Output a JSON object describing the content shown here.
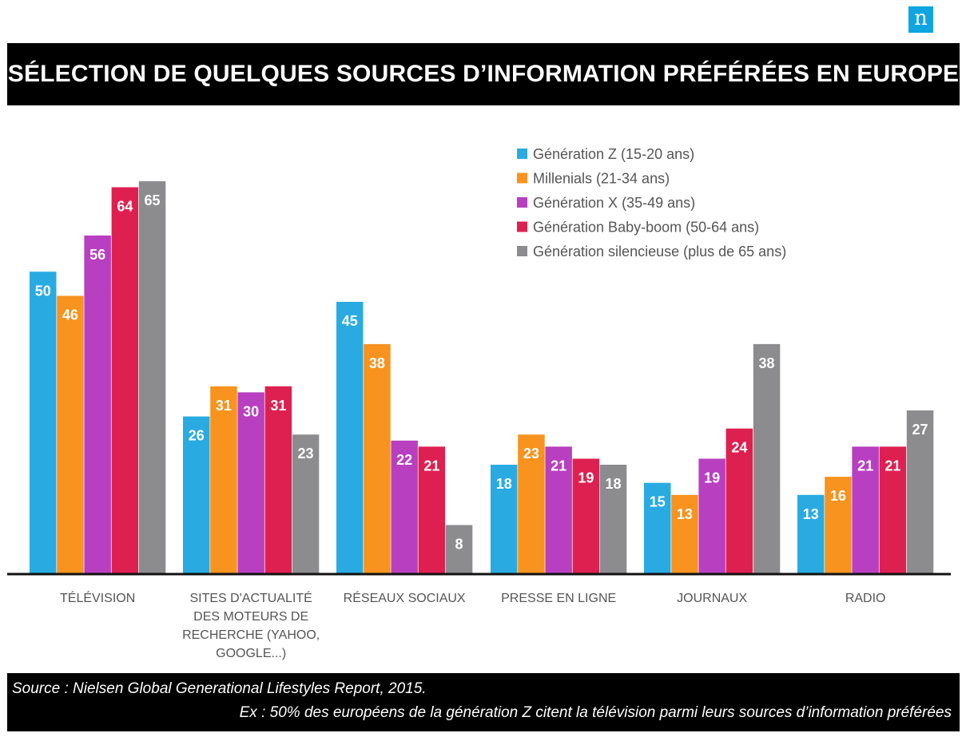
{
  "logo": {
    "text": "n",
    "color": "#0ea5e0"
  },
  "header": {
    "title": "SÉLECTION DE QUELQUES SOURCES D’INFORMATION PRÉFÉRÉES EN EUROPE"
  },
  "footer": {
    "source": "Source : Nielsen Global Generational Lifestyles Report, 2015.",
    "note": "Ex : 50% des européens de la génération Z citent la télévision parmi leurs sources d’information préférées"
  },
  "chart_data": {
    "type": "bar",
    "title": "SÉLECTION DE QUELQUES SOURCES D’INFORMATION PRÉFÉRÉES EN EUROPE",
    "xlabel": "",
    "ylabel": "",
    "ylim": [
      0,
      65
    ],
    "grid": false,
    "legend_position": "top-right",
    "categories": [
      [
        "TÉLÉVISION"
      ],
      [
        "SITES D'ACTUALITÉ",
        "DES MOTEURS DE",
        "RECHERCHE (YAHOO,",
        "GOOGLE...)"
      ],
      [
        "RÉSEAUX SOCIAUX"
      ],
      [
        "PRESSE EN LIGNE"
      ],
      [
        "JOURNAUX"
      ],
      [
        "RADIO"
      ]
    ],
    "series": [
      {
        "name": "Génération Z (15-20 ans)",
        "color": "#29abe2",
        "values": [
          50,
          26,
          45,
          18,
          15,
          13
        ]
      },
      {
        "name": "Millenials (21-34 ans)",
        "color": "#f7931e",
        "values": [
          46,
          31,
          38,
          23,
          13,
          16
        ]
      },
      {
        "name": "Génération X (35-49 ans)",
        "color": "#b83fc0",
        "values": [
          56,
          30,
          22,
          21,
          19,
          21
        ]
      },
      {
        "name": "Génération Baby-boom (50-64 ans)",
        "color": "#de2050",
        "values": [
          64,
          31,
          21,
          19,
          24,
          21
        ]
      },
      {
        "name": "Génération silencieuse (plus de 65 ans)",
        "color": "#8c8c8f",
        "values": [
          65,
          23,
          8,
          18,
          38,
          27
        ]
      }
    ]
  }
}
